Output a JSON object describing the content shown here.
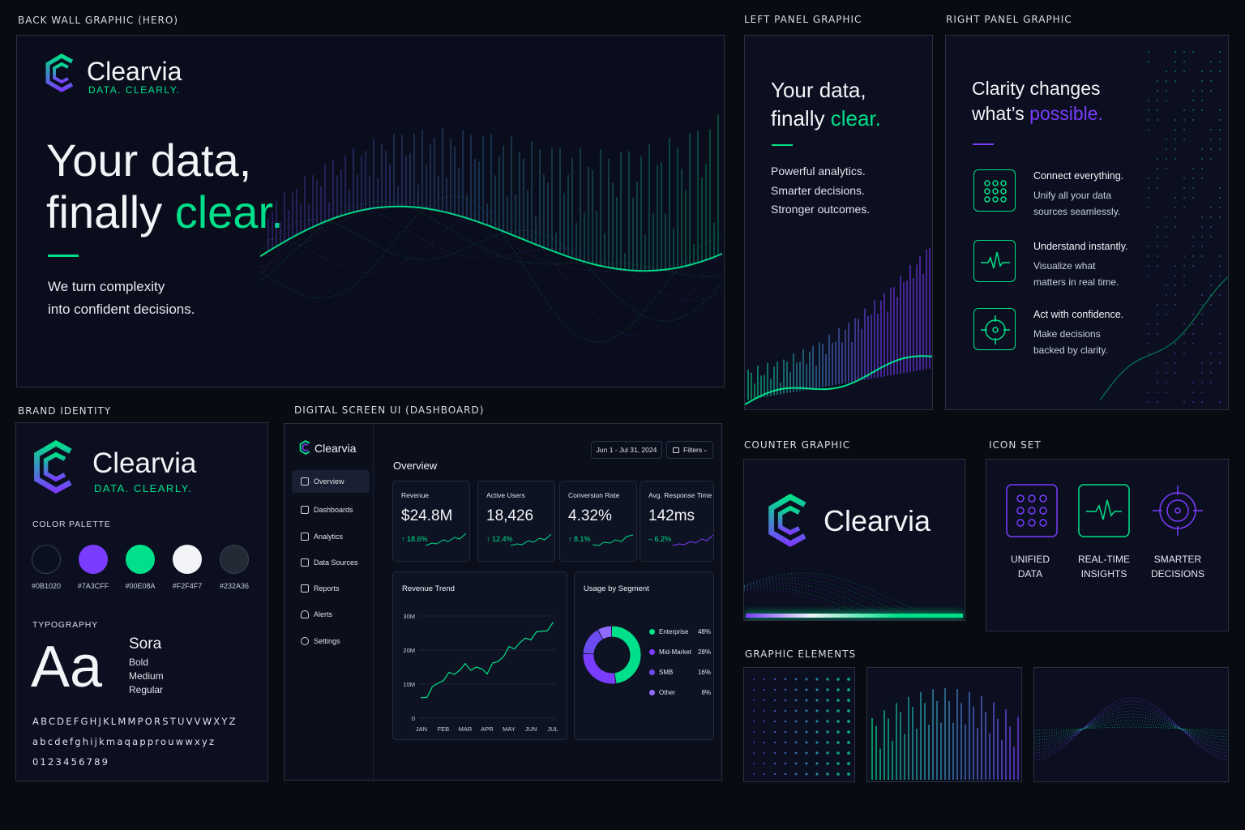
{
  "labels": {
    "hero": "BACK WALL GRAPHIC (HERO)",
    "left": "LEFT PANEL GRAPHIC",
    "right": "RIGHT PANEL GRAPHIC",
    "brand": "BRAND IDENTITY",
    "dashboard": "DIGITAL SCREEN UI (DASHBOARD)",
    "counter": "COUNTER GRAPHIC",
    "icons": "ICON SET",
    "elements": "GRAPHIC ELEMENTS"
  },
  "brand_name": "Clearvia",
  "tagline": "DATA. CLEARLY.",
  "hero": {
    "line1": "Your data,",
    "line2a": "finally ",
    "line2b": "clear.",
    "sub1": "We turn complexity",
    "sub2": "into confident decisions."
  },
  "left": {
    "line1": "Your data,",
    "line2a": "finally ",
    "line2b": "clear.",
    "l1": "Powerful analytics.",
    "l2": "Smarter decisions.",
    "l3": "Stronger outcomes."
  },
  "right": {
    "line1": "Clarity changes",
    "line2a": "what’s ",
    "line2b": "possible.",
    "features": [
      {
        "title": "Connect everything.",
        "d1": "Unify all your data",
        "d2": "sources seamlessly.",
        "icon": "grid-icon"
      },
      {
        "title": "Understand instantly.",
        "d1": "Visualize what",
        "d2": "matters in real time.",
        "icon": "pulse-icon"
      },
      {
        "title": "Act with confidence.",
        "d1": "Make decisions",
        "d2": "backed by clarity.",
        "icon": "target-icon"
      }
    ]
  },
  "brand_identity": {
    "palette_label": "COLOR PALETTE",
    "colors": [
      {
        "hex": "#0B1020",
        "value": "#0b1020"
      },
      {
        "hex": "#7A3CFF",
        "value": "#7a3cff"
      },
      {
        "hex": "#00E08A",
        "value": "#00e08a"
      },
      {
        "hex": "#F2F4F7",
        "value": "#f2f4f7"
      },
      {
        "hex": "#232A36",
        "value": "#232a36"
      }
    ],
    "typography_label": "TYPOGRAPHY",
    "sample": "Aa",
    "font_name": "Sora",
    "weights": [
      "Bold",
      "Medium",
      "Regular"
    ],
    "upper": "ABCDEFGHJKLMMPORSTUVVWXYZ",
    "lower": "abcdefghijkmaqapprouwwxyz",
    "digits": "0123456789"
  },
  "dashboard": {
    "brand": "Clearvia",
    "nav": [
      "Overview",
      "Dashboards",
      "Analytics",
      "Data Sources",
      "Reports",
      "Alerts",
      "Settings"
    ],
    "date_range": "Jun 1 - Jul 31, 2024",
    "filters": "Filters",
    "title": "Overview",
    "kpis": [
      {
        "label": "Revenue",
        "value": "$24.8M",
        "delta": "↑ 18.6%",
        "color": "#00e08a"
      },
      {
        "label": "Active Users",
        "value": "18,426",
        "delta": "↑ 12.4%",
        "color": "#00e08a"
      },
      {
        "label": "Conversion Rate",
        "value": "4.32%",
        "delta": "↑ 8.1%",
        "color": "#00e08a"
      },
      {
        "label": "Avg. Response Time",
        "value": "142ms",
        "delta": "– 6.2%",
        "color": "#00e08a"
      }
    ],
    "trend_title": "Revenue Trend",
    "segment_title": "Usage by Segment"
  },
  "chart_data": [
    {
      "type": "line",
      "title": "Revenue Trend",
      "x": [
        "JAN",
        "FEB",
        "MAR",
        "APR",
        "MAY",
        "JUN",
        "JUL"
      ],
      "series": [
        {
          "values": [
            6,
            11,
            16,
            13,
            21,
            23,
            28
          ]
        }
      ],
      "yticks": [
        "0",
        "10M",
        "20M",
        "30M"
      ],
      "ylim": [
        0,
        30
      ]
    },
    {
      "type": "pie",
      "title": "Usage by Segment",
      "categories": [
        "Enterprise",
        "Mid-Market",
        "SMB",
        "Other"
      ],
      "values": [
        48,
        28,
        16,
        8
      ],
      "labels": [
        "48%",
        "28%",
        "16%",
        "8%"
      ],
      "colors": [
        "#00e08a",
        "#7a3cff",
        "#6a4cf0",
        "#8f6bff"
      ]
    }
  ],
  "counter": {
    "name": "Clearvia"
  },
  "icon_set": [
    {
      "l1": "UNIFIED",
      "l2": "DATA",
      "icon": "grid-icon"
    },
    {
      "l1": "REAL-TIME",
      "l2": "INSIGHTS",
      "icon": "pulse-icon"
    },
    {
      "l1": "SMARTER",
      "l2": "DECISIONS",
      "icon": "target-icon"
    }
  ]
}
